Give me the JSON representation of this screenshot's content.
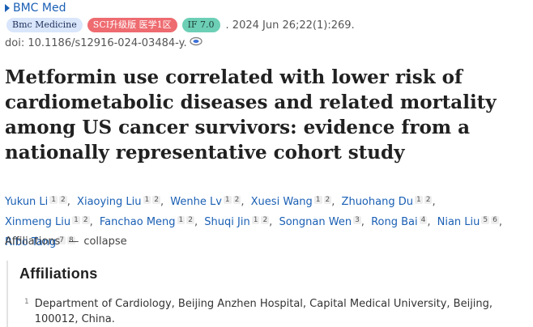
{
  "journal": {
    "name": "BMC Med"
  },
  "badges": [
    {
      "label": "Bmc Medicine",
      "color": "#d9e6fb"
    },
    {
      "label": "SCI升级版 医学1区",
      "color": "#ee6b70"
    },
    {
      "label": "IF 7.0",
      "color": "#6ccfb6"
    }
  ],
  "citation": ". 2024 Jun 26;22(1):269.",
  "doi": "doi: 10.1186/s12916-024-03484-y.",
  "title": "Metformin use correlated with lower risk of cardiometabolic diseases and related mortality among US cancer survivors: evidence from a nationally representative cohort study",
  "authors": [
    {
      "name": "Yukun Li",
      "sups": [
        "1",
        "2"
      ]
    },
    {
      "name": "Xiaoying Liu",
      "sups": [
        "1",
        "2"
      ]
    },
    {
      "name": "Wenhe Lv",
      "sups": [
        "1",
        "2"
      ]
    },
    {
      "name": "Xuesi Wang",
      "sups": [
        "1",
        "2"
      ]
    },
    {
      "name": "Zhuohang Du",
      "sups": [
        "1",
        "2"
      ]
    },
    {
      "name": "Xinmeng Liu",
      "sups": [
        "1",
        "2"
      ]
    },
    {
      "name": "Fanchao Meng",
      "sups": [
        "1",
        "2"
      ]
    },
    {
      "name": "Shuqi Jin",
      "sups": [
        "1",
        "2"
      ]
    },
    {
      "name": "Songnan Wen",
      "sups": [
        "3"
      ]
    },
    {
      "name": "Rong Bai",
      "sups": [
        "4"
      ]
    },
    {
      "name": "Nian Liu",
      "sups": [
        "5",
        "6"
      ]
    },
    {
      "name": "Ribo Tang",
      "sups": [
        "7",
        "8"
      ]
    }
  ],
  "affiliations_toggle": {
    "label": "Affiliations",
    "action": "collapse"
  },
  "affiliations": {
    "heading": "Affiliations",
    "items": [
      {
        "num": "1",
        "text": "Department of Cardiology, Beijing Anzhen Hospital, Capital Medical University, Beijing, 100012, China."
      }
    ]
  }
}
